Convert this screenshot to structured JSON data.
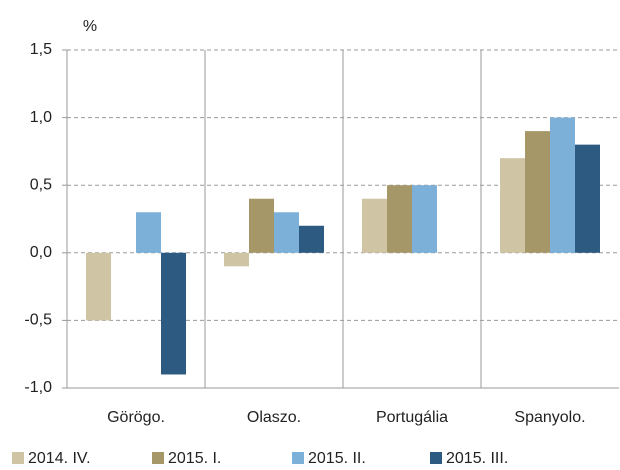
{
  "chart_data": {
    "type": "bar",
    "y_label": "%",
    "categories": [
      "Görögo.",
      "Olaszo.",
      "Portugália",
      "Spanyolo."
    ],
    "series": [
      {
        "name": "2014. IV.",
        "color": "#cfc4a4",
        "values": [
          -0.5,
          -0.1,
          0.4,
          0.7
        ]
      },
      {
        "name": "2015. I.",
        "color": "#a69769",
        "values": [
          0,
          0.4,
          0.5,
          0.9
        ]
      },
      {
        "name": "2015. II.",
        "color": "#7cb0d9",
        "values": [
          0.3,
          0.3,
          0.5,
          1.0
        ]
      },
      {
        "name": "2015. III.",
        "color": "#2c5a80",
        "values": [
          -0.9,
          0.2,
          null,
          0.8
        ]
      }
    ],
    "ylim": [
      -1.0,
      1.5
    ],
    "yticks": [
      {
        "value": -1.0,
        "label": "-1,0"
      },
      {
        "value": -0.5,
        "label": "-0,5"
      },
      {
        "value": 0,
        "label": "0,0"
      },
      {
        "value": 0.5,
        "label": "0,5"
      },
      {
        "value": 1.0,
        "label": "1,0"
      },
      {
        "value": 1.5,
        "label": "1,5"
      }
    ],
    "grid": true,
    "legend": "bottom"
  }
}
